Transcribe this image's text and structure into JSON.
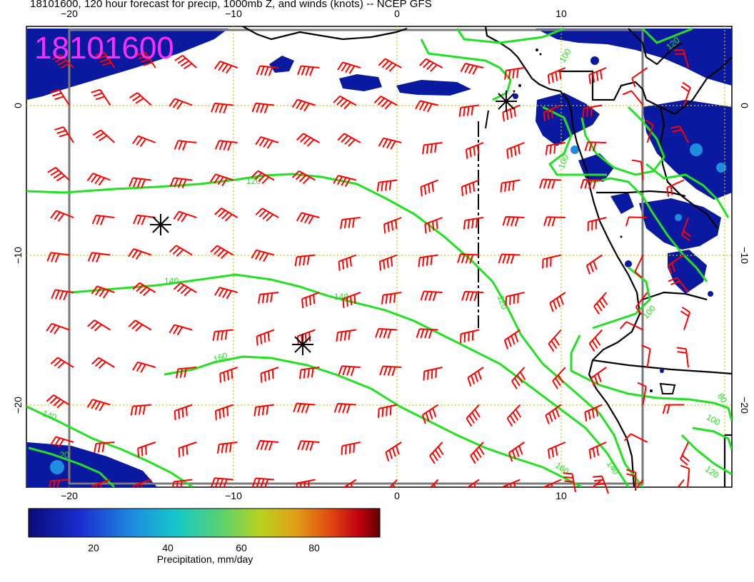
{
  "title": "18101600, 120 hour forecast for precip, 1000mb Z, and winds (knots) -- NCEP GFS",
  "stamp": "18101600",
  "axes": {
    "x_ticks": [
      "−20",
      "−10",
      "0",
      "10"
    ],
    "y_ticks_left": [
      "0",
      "−10",
      "−20"
    ],
    "y_ticks_right": [
      "0",
      "−10",
      "−20"
    ]
  },
  "colorbar": {
    "label": "Precipitation, mm/day",
    "ticks": [
      "20",
      "40",
      "60",
      "80"
    ],
    "colors": [
      "#0a0a7a",
      "#1a2fd0",
      "#1e8de0",
      "#14c8c8",
      "#5ad26e",
      "#b8d21e",
      "#e0a018",
      "#e04810",
      "#c00010",
      "#600000"
    ]
  },
  "contour_labels": [
    "120",
    "140",
    "140",
    "160",
    "140",
    "120",
    "100",
    "100",
    "160",
    "140",
    "120",
    "100",
    "80",
    "100",
    "120",
    "20"
  ],
  "colors": {
    "contour": "#22e022",
    "wind": "#ff0000",
    "precip": "#0a1aa0",
    "grid": "#c8c800",
    "stamp": "#ff2bff"
  }
}
